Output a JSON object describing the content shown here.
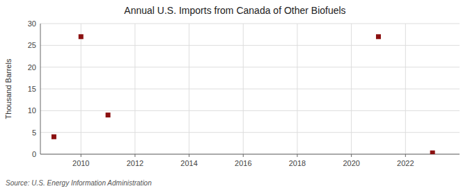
{
  "chart_data": {
    "type": "scatter",
    "title": "Annual U.S. Imports from Canada of Other Biofuels",
    "ylabel": "Thousand Barrels",
    "annotations": [
      "Source: U.S. Energy Information Administration"
    ],
    "x": [
      2009,
      2010,
      2011,
      2021,
      2023
    ],
    "values": [
      4,
      27,
      9,
      27,
      0.3
    ],
    "color": "#8b1010",
    "marker": "square",
    "xlim": [
      2008.5,
      2024.0
    ],
    "ylim": [
      0,
      30
    ],
    "xticks": [
      2010,
      2012,
      2014,
      2016,
      2018,
      2020,
      2022
    ],
    "yticks": [
      0,
      5,
      10,
      15,
      20,
      25,
      30
    ],
    "grid": true
  }
}
